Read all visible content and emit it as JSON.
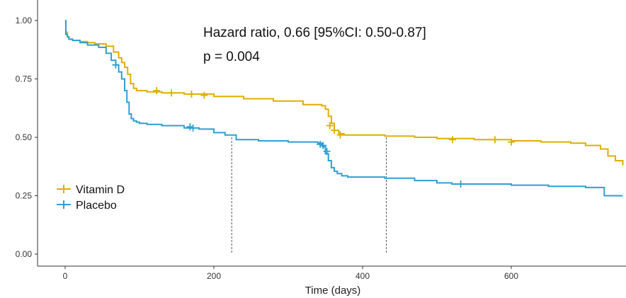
{
  "chart_data": {
    "type": "line",
    "subtype": "kaplan-meier",
    "title": "",
    "xlabel": "Time (days)",
    "ylabel": "",
    "xlim": [
      0,
      750
    ],
    "ylim": [
      0,
      1
    ],
    "x_ticks": [
      0,
      200,
      400,
      600
    ],
    "x_tick_labels": [
      "0",
      "200",
      "400",
      "600"
    ],
    "y_ticks": [
      0,
      0.25,
      0.5,
      0.75,
      1.0
    ],
    "y_tick_labels": [
      "0.00",
      "0.25",
      "0.50",
      "0.75",
      "1.00"
    ],
    "grid": false,
    "legend_position": "bottom-left",
    "annotations": [
      "Hazard ratio, 0.66 [95%CI: 0.50-0.87]",
      "p = 0.004"
    ],
    "median_lines": [
      {
        "x": 224,
        "y": 0.5
      },
      {
        "x": 432,
        "y": 0.5
      }
    ],
    "series": [
      {
        "name": "Vitamin D",
        "color": "#E0AE00",
        "x": [
          0,
          1,
          3,
          5,
          10,
          20,
          30,
          40,
          55,
          65,
          72,
          76,
          80,
          84,
          88,
          92,
          96,
          102,
          110,
          130,
          160,
          200,
          240,
          280,
          320,
          345,
          350,
          354,
          358,
          362,
          368,
          375,
          400,
          430,
          470,
          500,
          550,
          600,
          640,
          680,
          700,
          720,
          730,
          740,
          750
        ],
        "y": [
          1.0,
          0.95,
          0.93,
          0.92,
          0.915,
          0.91,
          0.905,
          0.9,
          0.89,
          0.865,
          0.84,
          0.82,
          0.8,
          0.77,
          0.73,
          0.71,
          0.7,
          0.7,
          0.695,
          0.69,
          0.685,
          0.675,
          0.665,
          0.655,
          0.64,
          0.635,
          0.62,
          0.59,
          0.56,
          0.53,
          0.515,
          0.51,
          0.51,
          0.505,
          0.5,
          0.495,
          0.49,
          0.485,
          0.48,
          0.475,
          0.465,
          0.45,
          0.42,
          0.4,
          0.38
        ],
        "censor_x": [
          123,
          143,
          170,
          187,
          356,
          362,
          370,
          521,
          578,
          600
        ],
        "censor_y": [
          0.7,
          0.69,
          0.685,
          0.68,
          0.55,
          0.53,
          0.51,
          0.49,
          0.49,
          0.48
        ]
      },
      {
        "name": "Placebo",
        "color": "#2E9FD3",
        "x": [
          0,
          1,
          3,
          5,
          10,
          20,
          30,
          45,
          55,
          62,
          68,
          72,
          76,
          80,
          83,
          86,
          89,
          92,
          96,
          100,
          110,
          130,
          160,
          180,
          200,
          215,
          230,
          260,
          300,
          340,
          346,
          350,
          354,
          358,
          362,
          366,
          372,
          380,
          400,
          430,
          470,
          500,
          520,
          560,
          600,
          650,
          700,
          725,
          750
        ],
        "y": [
          1.0,
          0.94,
          0.93,
          0.92,
          0.915,
          0.905,
          0.895,
          0.885,
          0.86,
          0.83,
          0.81,
          0.78,
          0.75,
          0.7,
          0.65,
          0.6,
          0.58,
          0.57,
          0.565,
          0.56,
          0.555,
          0.55,
          0.54,
          0.535,
          0.52,
          0.51,
          0.49,
          0.485,
          0.48,
          0.475,
          0.46,
          0.43,
          0.4,
          0.37,
          0.355,
          0.345,
          0.335,
          0.33,
          0.33,
          0.325,
          0.315,
          0.305,
          0.3,
          0.3,
          0.295,
          0.29,
          0.285,
          0.25,
          0.25
        ],
        "censor_x": [
          68,
          168,
          172,
          343,
          347,
          352,
          532
        ],
        "censor_y": [
          0.81,
          0.545,
          0.54,
          0.47,
          0.465,
          0.44,
          0.3
        ]
      }
    ]
  }
}
